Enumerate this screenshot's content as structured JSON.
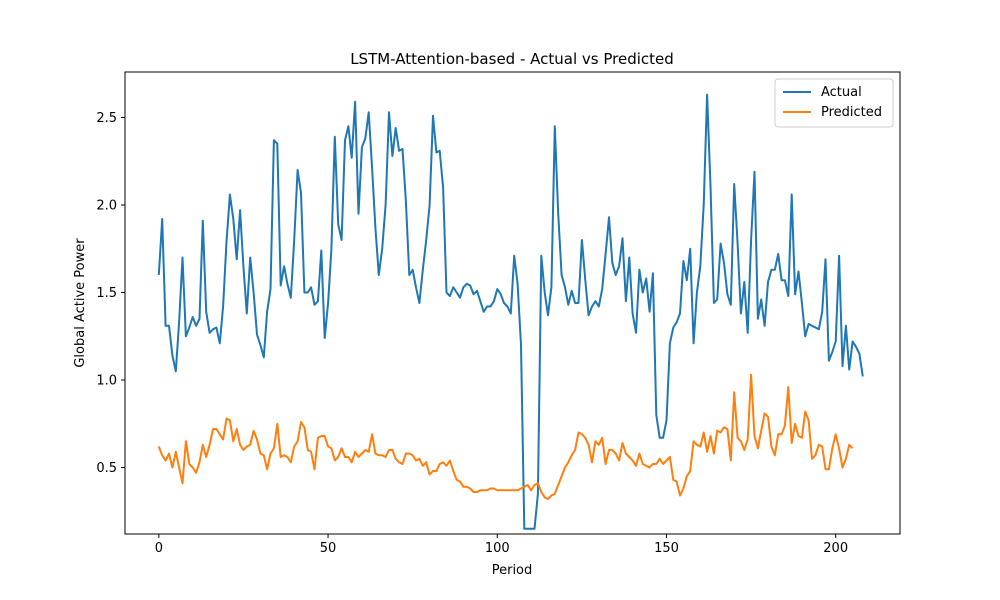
{
  "chart_data": {
    "type": "line",
    "title": "LSTM-Attention-based - Actual vs Predicted",
    "xlabel": "Period",
    "ylabel": "Global Active Power",
    "xlim": [
      -10,
      219
    ],
    "ylim": [
      0.12,
      2.76
    ],
    "xticks": [
      0,
      50,
      100,
      150,
      200
    ],
    "yticks": [
      0.5,
      1.0,
      1.5,
      2.0,
      2.5
    ],
    "xtick_labels": [
      "0",
      "50",
      "100",
      "150",
      "200"
    ],
    "ytick_labels": [
      "0.5",
      "1.0",
      "1.5",
      "2.0",
      "2.5"
    ],
    "grid": false,
    "legend_position": "top-right",
    "series": [
      {
        "name": "Actual",
        "color": "#1f77b4",
        "values": [
          1.6,
          1.92,
          1.31,
          1.31,
          1.14,
          1.05,
          1.33,
          1.7,
          1.25,
          1.3,
          1.36,
          1.31,
          1.35,
          1.91,
          1.39,
          1.27,
          1.29,
          1.3,
          1.21,
          1.42,
          1.79,
          2.06,
          1.92,
          1.69,
          1.97,
          1.65,
          1.38,
          1.7,
          1.5,
          1.26,
          1.2,
          1.13,
          1.39,
          1.52,
          2.37,
          2.35,
          1.54,
          1.65,
          1.55,
          1.47,
          1.8,
          2.2,
          2.07,
          1.5,
          1.5,
          1.53,
          1.43,
          1.45,
          1.74,
          1.24,
          1.44,
          1.75,
          2.39,
          1.89,
          1.8,
          2.37,
          2.45,
          2.27,
          2.59,
          1.95,
          2.33,
          2.38,
          2.53,
          2.21,
          1.87,
          1.6,
          1.75,
          2.0,
          2.53,
          2.28,
          2.44,
          2.31,
          2.32,
          2.02,
          1.6,
          1.63,
          1.53,
          1.44,
          1.63,
          1.8,
          2.0,
          2.51,
          2.3,
          2.31,
          2.1,
          1.5,
          1.48,
          1.53,
          1.5,
          1.47,
          1.53,
          1.55,
          1.54,
          1.49,
          1.51,
          1.45,
          1.39,
          1.42,
          1.42,
          1.45,
          1.52,
          1.49,
          1.44,
          1.42,
          1.38,
          1.71,
          1.55,
          1.2,
          0.15,
          0.15,
          0.15,
          0.15,
          0.35,
          1.71,
          1.5,
          1.37,
          1.53,
          2.45,
          1.95,
          1.6,
          1.53,
          1.43,
          1.51,
          1.44,
          1.44,
          1.8,
          1.57,
          1.37,
          1.42,
          1.45,
          1.42,
          1.52,
          1.72,
          1.93,
          1.67,
          1.6,
          1.65,
          1.81,
          1.45,
          1.7,
          1.38,
          1.27,
          1.63,
          1.5,
          1.58,
          1.39,
          1.61,
          0.8,
          0.67,
          0.67,
          0.77,
          1.21,
          1.3,
          1.33,
          1.38,
          1.68,
          1.57,
          1.75,
          1.21,
          1.5,
          1.65,
          2.0,
          2.63,
          2.11,
          1.44,
          1.46,
          1.78,
          1.67,
          1.49,
          1.43,
          2.12,
          1.78,
          1.38,
          1.56,
          1.27,
          1.8,
          2.19,
          1.35,
          1.46,
          1.31,
          1.56,
          1.63,
          1.63,
          1.72,
          1.57,
          1.57,
          1.48,
          2.06,
          1.49,
          1.62,
          1.44,
          1.25,
          1.32,
          1.31,
          1.3,
          1.29,
          1.39,
          1.69,
          1.11,
          1.16,
          1.22,
          1.71,
          1.08,
          1.31,
          1.06,
          1.22,
          1.19,
          1.15,
          1.02
        ]
      },
      {
        "name": "Predicted",
        "color": "#ff7f0e",
        "values": [
          0.62,
          0.57,
          0.54,
          0.58,
          0.5,
          0.59,
          0.5,
          0.41,
          0.65,
          0.52,
          0.5,
          0.47,
          0.53,
          0.63,
          0.56,
          0.63,
          0.72,
          0.72,
          0.69,
          0.66,
          0.78,
          0.77,
          0.65,
          0.72,
          0.63,
          0.6,
          0.62,
          0.63,
          0.71,
          0.66,
          0.58,
          0.57,
          0.49,
          0.58,
          0.61,
          0.75,
          0.56,
          0.57,
          0.56,
          0.53,
          0.62,
          0.65,
          0.76,
          0.73,
          0.6,
          0.59,
          0.49,
          0.67,
          0.68,
          0.68,
          0.62,
          0.61,
          0.54,
          0.56,
          0.61,
          0.56,
          0.56,
          0.53,
          0.59,
          0.56,
          0.58,
          0.6,
          0.59,
          0.69,
          0.58,
          0.57,
          0.57,
          0.56,
          0.6,
          0.6,
          0.55,
          0.53,
          0.52,
          0.58,
          0.58,
          0.57,
          0.54,
          0.55,
          0.51,
          0.53,
          0.46,
          0.48,
          0.48,
          0.52,
          0.53,
          0.51,
          0.54,
          0.48,
          0.43,
          0.42,
          0.39,
          0.39,
          0.38,
          0.36,
          0.36,
          0.37,
          0.37,
          0.37,
          0.38,
          0.38,
          0.37,
          0.37,
          0.37,
          0.37,
          0.37,
          0.37,
          0.37,
          0.38,
          0.39,
          0.4,
          0.37,
          0.4,
          0.41,
          0.36,
          0.33,
          0.32,
          0.34,
          0.35,
          0.4,
          0.45,
          0.5,
          0.53,
          0.57,
          0.6,
          0.7,
          0.69,
          0.67,
          0.63,
          0.53,
          0.65,
          0.63,
          0.67,
          0.52,
          0.6,
          0.6,
          0.58,
          0.54,
          0.64,
          0.58,
          0.56,
          0.54,
          0.51,
          0.58,
          0.52,
          0.51,
          0.5,
          0.52,
          0.52,
          0.55,
          0.52,
          0.54,
          0.56,
          0.43,
          0.42,
          0.34,
          0.38,
          0.45,
          0.48,
          0.65,
          0.63,
          0.62,
          0.7,
          0.59,
          0.68,
          0.58,
          0.71,
          0.7,
          0.73,
          0.72,
          0.54,
          0.93,
          0.67,
          0.65,
          0.6,
          0.66,
          1.03,
          0.68,
          0.61,
          0.71,
          0.81,
          0.79,
          0.62,
          0.57,
          0.69,
          0.69,
          0.74,
          0.96,
          0.64,
          0.75,
          0.68,
          0.67,
          0.82,
          0.77,
          0.55,
          0.57,
          0.63,
          0.62,
          0.49,
          0.49,
          0.61,
          0.69,
          0.61,
          0.5,
          0.55,
          0.63,
          0.61
        ]
      }
    ]
  }
}
